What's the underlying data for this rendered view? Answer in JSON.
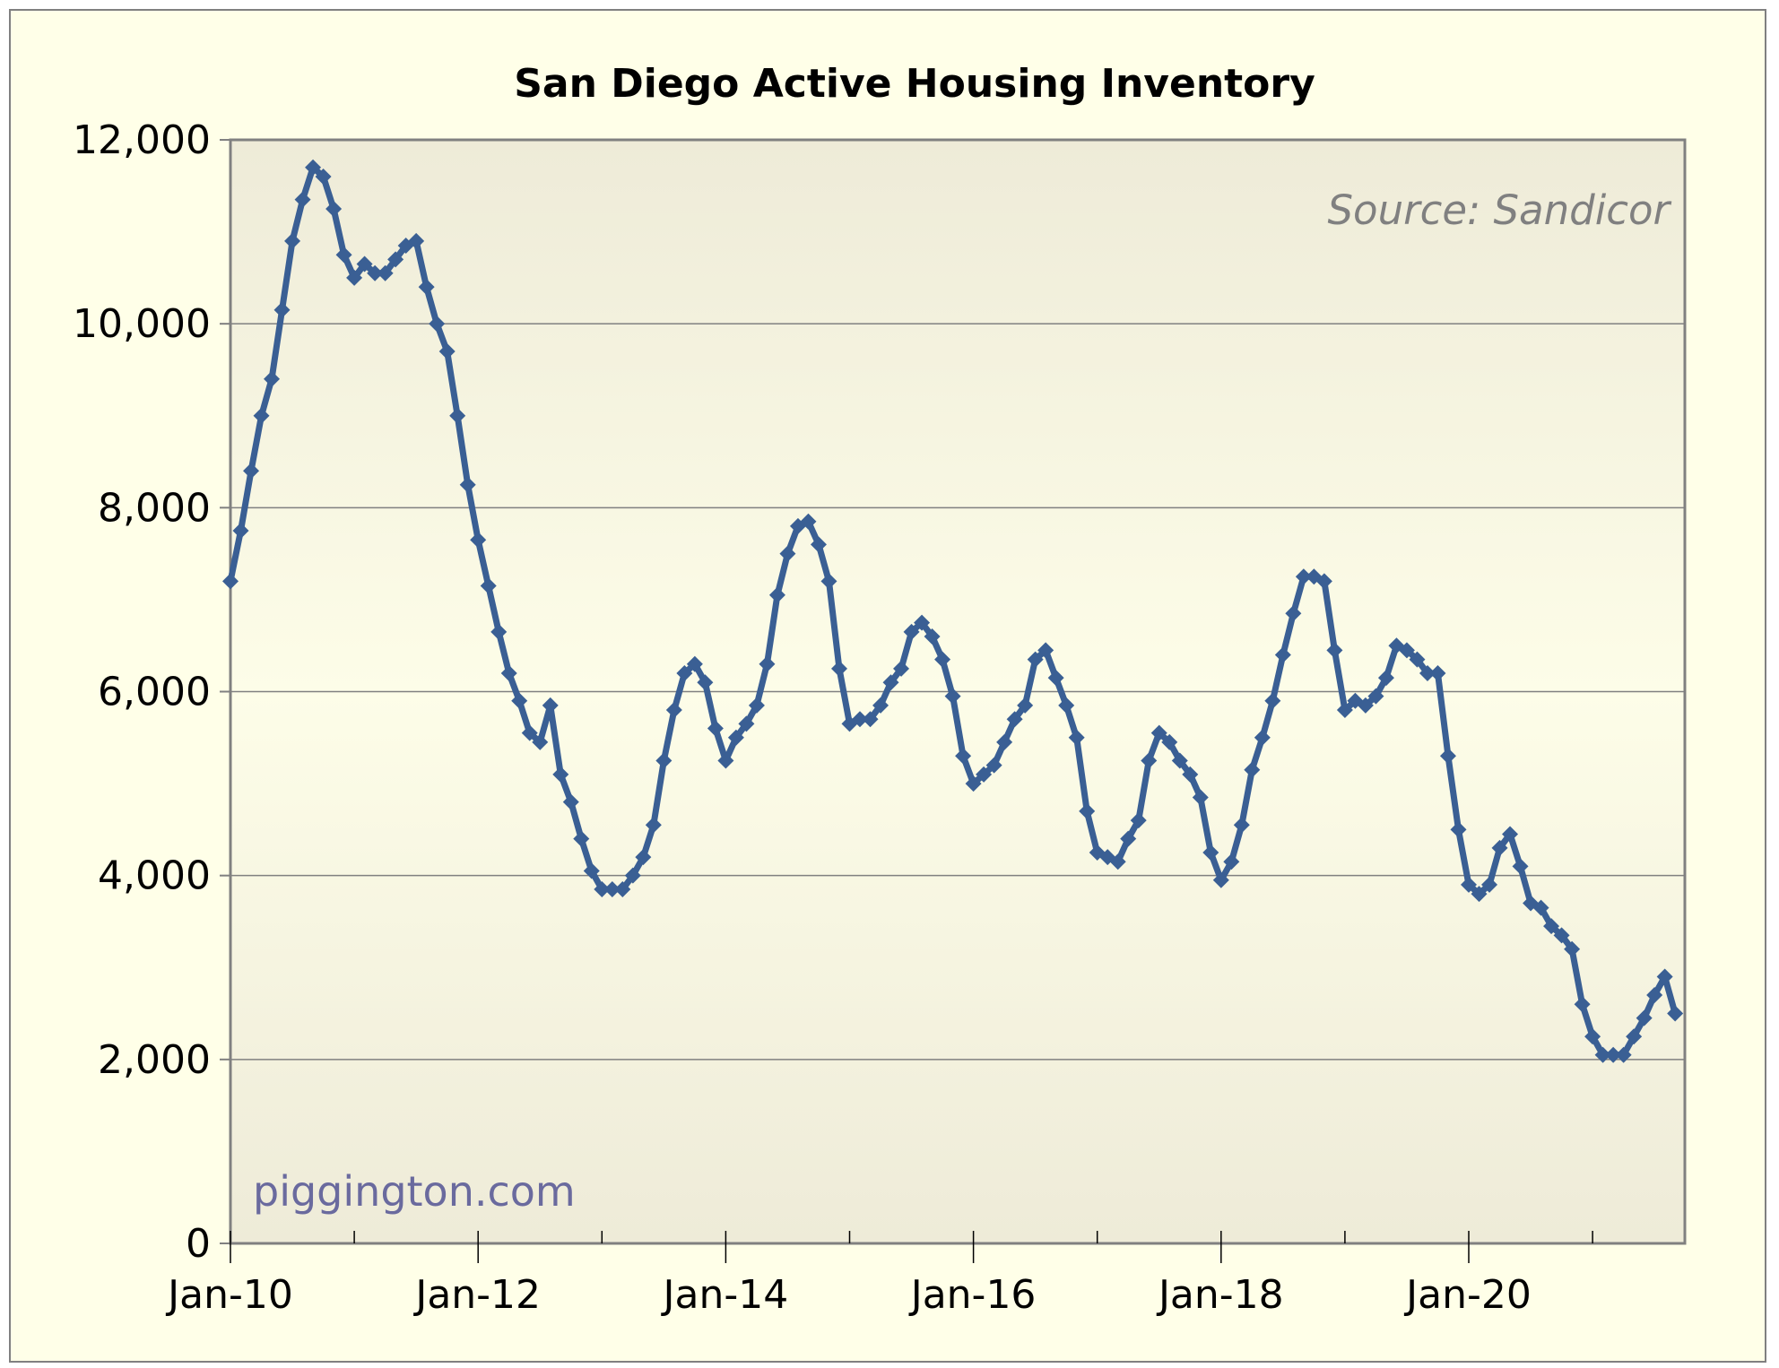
{
  "chart_data": {
    "type": "line",
    "title": "San Diego Active Housing Inventory",
    "source_note": "Source: Sandicor",
    "watermark": "piggington.com",
    "xlabel": "",
    "ylabel": "",
    "ylim": [
      0,
      12000
    ],
    "yticks": [
      0,
      2000,
      4000,
      6000,
      8000,
      10000,
      12000
    ],
    "ytick_labels": [
      "0",
      "2,000",
      "4,000",
      "6,000",
      "8,000",
      "10,000",
      "12,000"
    ],
    "xtick_labels": [
      "Jan-10",
      "Jan-12",
      "Jan-14",
      "Jan-16",
      "Jan-18",
      "Jan-20"
    ],
    "x_start": "Jan-10",
    "x_frequency": "monthly",
    "grid": true,
    "series_color": "#3a5f94",
    "series": [
      {
        "name": "Active Inventory",
        "values": [
          7200,
          7750,
          8400,
          9000,
          9400,
          10150,
          10900,
          11350,
          11700,
          11600,
          11250,
          10750,
          10500,
          10650,
          10550,
          10550,
          10700,
          10850,
          10900,
          10400,
          10000,
          9700,
          9000,
          8250,
          7650,
          7150,
          6650,
          6200,
          5900,
          5550,
          5450,
          5850,
          5100,
          4800,
          4400,
          4050,
          3850,
          3850,
          3850,
          4000,
          4200,
          4550,
          5250,
          5800,
          6200,
          6300,
          6100,
          5600,
          5250,
          5500,
          5650,
          5850,
          6300,
          7050,
          7500,
          7800,
          7850,
          7600,
          7200,
          6250,
          5650,
          5700,
          5700,
          5850,
          6100,
          6250,
          6650,
          6750,
          6600,
          6350,
          5950,
          5300,
          5000,
          5100,
          5200,
          5450,
          5700,
          5850,
          6350,
          6450,
          6150,
          5850,
          5500,
          4700,
          4250,
          4200,
          4150,
          4400,
          4600,
          5250,
          5550,
          5450,
          5250,
          5100,
          4850,
          4250,
          3950,
          4150,
          4550,
          5150,
          5500,
          5900,
          6400,
          6850,
          7250,
          7250,
          7200,
          6450,
          5800,
          5900,
          5850,
          5950,
          6150,
          6500,
          6450,
          6350,
          6200,
          6200,
          5300,
          4500,
          3900,
          3800,
          3900,
          4300,
          4450,
          4100,
          3700,
          3650,
          3450,
          3350,
          3200,
          2600,
          2250,
          2050,
          2050,
          2050,
          2250,
          2450,
          2700,
          2900,
          2500
        ]
      }
    ]
  }
}
